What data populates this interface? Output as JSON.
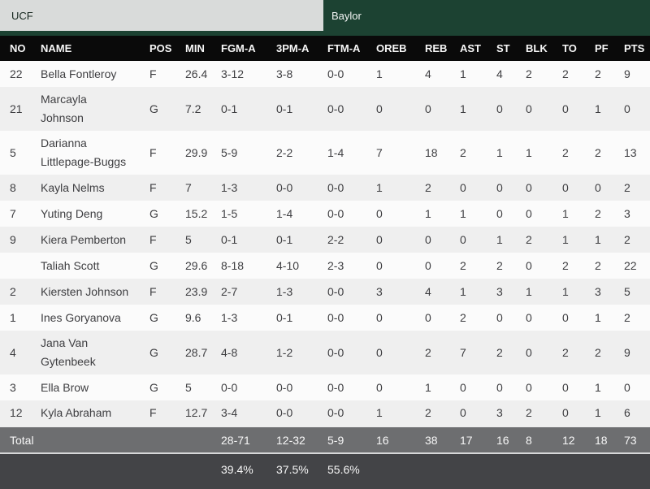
{
  "tabs": [
    {
      "label": "UCF"
    },
    {
      "label": "Baylor"
    }
  ],
  "table": {
    "columns": [
      "NO",
      "NAME",
      "POS",
      "MIN",
      "FGM-A",
      "3PM-A",
      "FTM-A",
      "OREB",
      "REB",
      "AST",
      "ST",
      "BLK",
      "TO",
      "PF",
      "PTS"
    ],
    "rows": [
      [
        "22",
        "Bella Fontleroy",
        "F",
        "26.4",
        "3-12",
        "3-8",
        "0-0",
        "1",
        "4",
        "1",
        "4",
        "2",
        "2",
        "2",
        "9"
      ],
      [
        "21",
        "Marcayla Johnson",
        "G",
        "7.2",
        "0-1",
        "0-1",
        "0-0",
        "0",
        "0",
        "1",
        "0",
        "0",
        "0",
        "1",
        "0"
      ],
      [
        "5",
        "Darianna Littlepage-Buggs",
        "F",
        "29.9",
        "5-9",
        "2-2",
        "1-4",
        "7",
        "18",
        "2",
        "1",
        "1",
        "2",
        "2",
        "13"
      ],
      [
        "8",
        "Kayla Nelms",
        "F",
        "7",
        "1-3",
        "0-0",
        "0-0",
        "1",
        "2",
        "0",
        "0",
        "0",
        "0",
        "0",
        "2"
      ],
      [
        "7",
        "Yuting Deng",
        "G",
        "15.2",
        "1-5",
        "1-4",
        "0-0",
        "0",
        "1",
        "1",
        "0",
        "0",
        "1",
        "2",
        "3"
      ],
      [
        "9",
        "Kiera Pemberton",
        "F",
        "5",
        "0-1",
        "0-1",
        "2-2",
        "0",
        "0",
        "0",
        "1",
        "2",
        "1",
        "1",
        "2"
      ],
      [
        "",
        "Taliah Scott",
        "G",
        "29.6",
        "8-18",
        "4-10",
        "2-3",
        "0",
        "0",
        "2",
        "2",
        "0",
        "2",
        "2",
        "22"
      ],
      [
        "2",
        "Kiersten Johnson",
        "F",
        "23.9",
        "2-7",
        "1-3",
        "0-0",
        "3",
        "4",
        "1",
        "3",
        "1",
        "1",
        "3",
        "5"
      ],
      [
        "1",
        "Ines Goryanova",
        "G",
        "9.6",
        "1-3",
        "0-1",
        "0-0",
        "0",
        "0",
        "2",
        "0",
        "0",
        "0",
        "1",
        "2"
      ],
      [
        "4",
        "Jana Van Gytenbeek",
        "G",
        "28.7",
        "4-8",
        "1-2",
        "0-0",
        "0",
        "2",
        "7",
        "2",
        "0",
        "2",
        "2",
        "9"
      ],
      [
        "3",
        "Ella Brow",
        "G",
        "5",
        "0-0",
        "0-0",
        "0-0",
        "0",
        "1",
        "0",
        "0",
        "0",
        "0",
        "1",
        "0"
      ],
      [
        "12",
        "Kyla Abraham",
        "F",
        "12.7",
        "3-4",
        "0-0",
        "0-0",
        "1",
        "2",
        "0",
        "3",
        "2",
        "0",
        "1",
        "6"
      ]
    ]
  },
  "totals": {
    "cells": [
      "Total",
      "",
      "",
      "",
      "28-71",
      "12-32",
      "5-9",
      "16",
      "38",
      "17",
      "16",
      "8",
      "12",
      "18",
      "73"
    ]
  },
  "percentages": {
    "cells": [
      "",
      "",
      "",
      "",
      "39.4%",
      "37.5%",
      "55.6%",
      "",
      "",
      "",
      "",
      "",
      "",
      "",
      ""
    ]
  },
  "colors": {
    "team_green": "#1c4232",
    "header_black": "#0a0a0a",
    "total_gray": "#6d6e70",
    "footer_dark": "#434447"
  }
}
